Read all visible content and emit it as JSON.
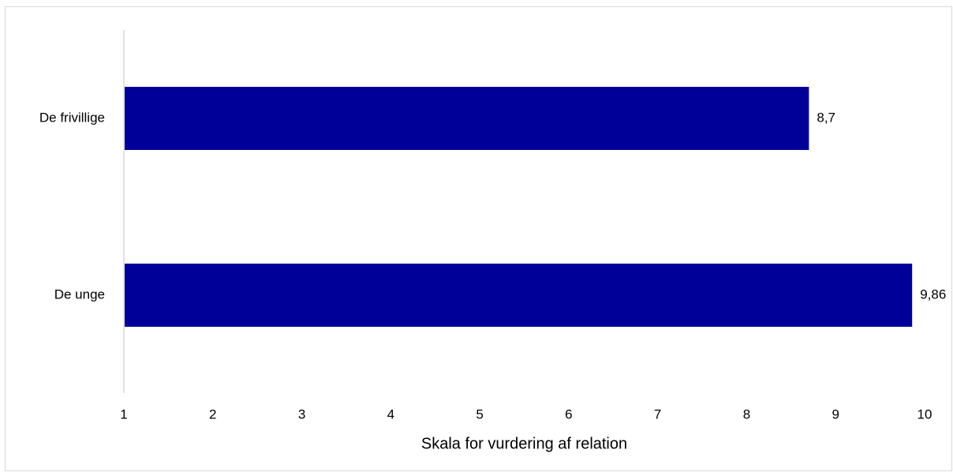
{
  "chart_data": {
    "type": "bar",
    "orientation": "horizontal",
    "categories": [
      "De frivillige",
      "De unge"
    ],
    "values": [
      8.7,
      9.86
    ],
    "data_labels": [
      "8,7",
      "9,86"
    ],
    "title": "",
    "xlabel": "Skala for vurdering af relation",
    "ylabel": "",
    "xlim": [
      1,
      10
    ],
    "xticks": [
      1,
      2,
      3,
      4,
      5,
      6,
      7,
      8,
      9,
      10
    ],
    "xtick_labels": [
      "1",
      "2",
      "3",
      "4",
      "5",
      "6",
      "7",
      "8",
      "9",
      "10"
    ],
    "grid": false,
    "legend": "none",
    "bar_color": "#000099",
    "axis_color": "#d9d9d9"
  }
}
